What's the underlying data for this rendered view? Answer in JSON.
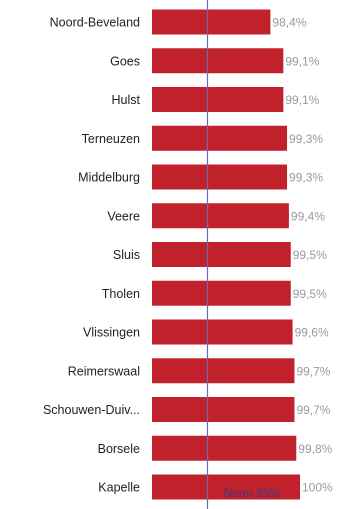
{
  "colors": {
    "bar": "#c0212a",
    "norm_line": "#6a6ab8",
    "value_text": "#9a9a9a",
    "category_text": "#222222"
  },
  "chart_data": {
    "type": "bar",
    "orientation": "horizontal",
    "categories": [
      "Noord-Beveland",
      "Goes",
      "Hulst",
      "Terneuzen",
      "Middelburg",
      "Veere",
      "Sluis",
      "Tholen",
      "Vlissingen",
      "Reimerswaal",
      "Schouwen-Duiv...",
      "Borsele",
      "Kapelle"
    ],
    "values": [
      98.4,
      99.1,
      99.1,
      99.3,
      99.3,
      99.4,
      99.5,
      99.5,
      99.6,
      99.7,
      99.7,
      99.8,
      100
    ],
    "value_labels": [
      "98,4%",
      "99,1%",
      "99,1%",
      "99,3%",
      "99,3%",
      "99,4%",
      "99,5%",
      "99,5%",
      "99,6%",
      "99,7%",
      "99,7%",
      "99,8%",
      "100%"
    ],
    "xlim": [
      92.0,
      100
    ],
    "reference_line": {
      "value": 95,
      "label": "Norm 95%"
    },
    "grid": false,
    "legend": "none"
  }
}
